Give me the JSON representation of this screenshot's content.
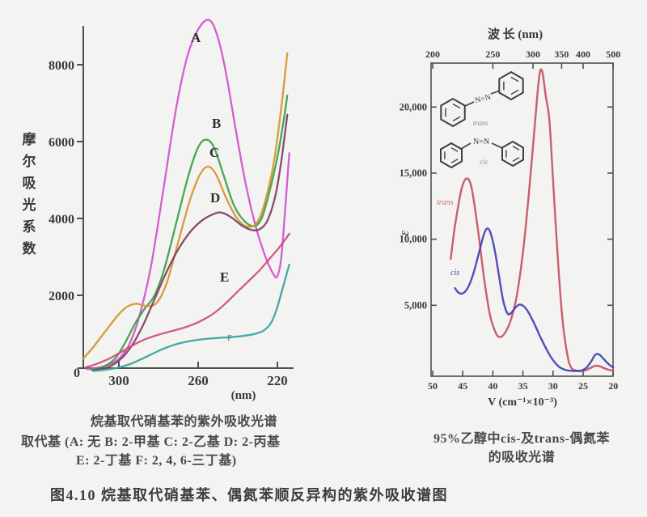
{
  "figure": {
    "number_caption": "图4.10  烷基取代硝基苯、偶氮苯顺反异构的紫外吸收谱图",
    "left_caption_line1": "烷基取代硝基苯的紫外吸收光谱",
    "left_caption_line2": "取代基 (A: 无  B: 2-甲基  C: 2-乙基  D: 2-丙基",
    "left_caption_line3": "E: 2-丁基  F: 2, 4, 6-三丁基)",
    "right_caption_line1": "95%乙醇中cis-及trans-偶氮苯",
    "right_caption_line2": "的吸收光谱"
  },
  "chart_data": [
    {
      "type": "line",
      "title": "烷基取代硝基苯的紫外吸收光谱",
      "xlabel": "(nm)",
      "ylabel": "摩尔吸光系数",
      "x_axis": {
        "unit": "nm",
        "ticks": [
          300,
          260,
          220
        ],
        "range": [
          318,
          214
        ],
        "reversed": true
      },
      "y_axis": {
        "ticks": [
          0,
          2000,
          4000,
          6000,
          8000
        ],
        "range": [
          0,
          9200
        ],
        "zero_label": "0"
      },
      "grid": false,
      "series": [
        {
          "name": "A",
          "substituent": "无",
          "color": "#d44fd0",
          "points": [
            [
              316,
              80
            ],
            [
              310,
              120
            ],
            [
              305,
              200
            ],
            [
              300,
              350
            ],
            [
              295,
              700
            ],
            [
              290,
              1400
            ],
            [
              284,
              2700
            ],
            [
              278,
              4600
            ],
            [
              271,
              6900
            ],
            [
              265,
              8300
            ],
            [
              259,
              9000
            ],
            [
              254,
              9150
            ],
            [
              250,
              8700
            ],
            [
              246,
              7800
            ],
            [
              241,
              6300
            ],
            [
              236,
              4900
            ],
            [
              231,
              3800
            ],
            [
              226,
              3000
            ],
            [
              222,
              2550
            ],
            [
              220,
              2500
            ],
            [
              218,
              3000
            ],
            [
              216,
              4300
            ],
            [
              214,
              5700
            ]
          ]
        },
        {
          "name": "B",
          "substituent": "2-甲基",
          "color": "#3aa044",
          "points": [
            [
              314,
              60
            ],
            [
              308,
              140
            ],
            [
              302,
              350
            ],
            [
              297,
              750
            ],
            [
              292,
              1250
            ],
            [
              287,
              1650
            ],
            [
              282,
              2000
            ],
            [
              277,
              2700
            ],
            [
              271,
              3900
            ],
            [
              265,
              5100
            ],
            [
              260,
              5850
            ],
            [
              256,
              6050
            ],
            [
              252,
              5850
            ],
            [
              247,
              5100
            ],
            [
              242,
              4350
            ],
            [
              237,
              3950
            ],
            [
              232,
              3800
            ],
            [
              228,
              4000
            ],
            [
              224,
              4700
            ],
            [
              220,
              5600
            ],
            [
              217,
              6500
            ],
            [
              215,
              7200
            ]
          ]
        },
        {
          "name": "C",
          "substituent": "2-乙基",
          "color": "#d8932f",
          "points": [
            [
              318,
              350
            ],
            [
              313,
              650
            ],
            [
              307,
              1050
            ],
            [
              301,
              1450
            ],
            [
              296,
              1700
            ],
            [
              291,
              1780
            ],
            [
              286,
              1720
            ],
            [
              281,
              1800
            ],
            [
              276,
              2300
            ],
            [
              270,
              3400
            ],
            [
              264,
              4500
            ],
            [
              259,
              5150
            ],
            [
              255,
              5350
            ],
            [
              251,
              5150
            ],
            [
              246,
              4550
            ],
            [
              241,
              4050
            ],
            [
              236,
              3800
            ],
            [
              231,
              3850
            ],
            [
              227,
              4300
            ],
            [
              222,
              5400
            ],
            [
              218,
              6900
            ],
            [
              215,
              8300
            ]
          ]
        },
        {
          "name": "D",
          "substituent": "2-丙基",
          "color": "#7d3f63",
          "points": [
            [
              313,
              50
            ],
            [
              306,
              120
            ],
            [
              300,
              300
            ],
            [
              294,
              650
            ],
            [
              288,
              1200
            ],
            [
              282,
              1900
            ],
            [
              276,
              2600
            ],
            [
              270,
              3200
            ],
            [
              264,
              3650
            ],
            [
              258,
              3950
            ],
            [
              252,
              4120
            ],
            [
              248,
              4150
            ],
            [
              243,
              4020
            ],
            [
              238,
              3820
            ],
            [
              233,
              3700
            ],
            [
              229,
              3720
            ],
            [
              225,
              3950
            ],
            [
              221,
              4600
            ],
            [
              218,
              5500
            ],
            [
              215,
              6700
            ]
          ]
        },
        {
          "name": "E",
          "substituent": "2-丁基",
          "color": "#cf4d7a",
          "points": [
            [
              317,
              120
            ],
            [
              311,
              220
            ],
            [
              305,
              350
            ],
            [
              299,
              520
            ],
            [
              293,
              700
            ],
            [
              287,
              850
            ],
            [
              281,
              960
            ],
            [
              274,
              1060
            ],
            [
              267,
              1160
            ],
            [
              260,
              1300
            ],
            [
              253,
              1500
            ],
            [
              247,
              1750
            ],
            [
              241,
              2050
            ],
            [
              235,
              2350
            ],
            [
              229,
              2650
            ],
            [
              224,
              2950
            ],
            [
              219,
              3250
            ],
            [
              214,
              3600
            ]
          ]
        },
        {
          "name": "F",
          "substituent": "2, 4, 6-三丁基",
          "color": "#35a39d",
          "points": [
            [
              313,
              30
            ],
            [
              307,
              60
            ],
            [
              301,
              110
            ],
            [
              295,
              200
            ],
            [
              289,
              330
            ],
            [
              283,
              480
            ],
            [
              277,
              620
            ],
            [
              271,
              730
            ],
            [
              264,
              810
            ],
            [
              257,
              860
            ],
            [
              250,
              890
            ],
            [
              244,
              910
            ],
            [
              238,
              940
            ],
            [
              232,
              990
            ],
            [
              227,
              1080
            ],
            [
              223,
              1300
            ],
            [
              220,
              1700
            ],
            [
              217,
              2250
            ],
            [
              214,
              2800
            ]
          ]
        }
      ],
      "annotations": [
        {
          "text": "A",
          "x": 236,
          "y": 52,
          "size": 17,
          "color": "#2d2d2d",
          "bold": true
        },
        {
          "text": "B",
          "x": 262,
          "y": 158,
          "size": 17,
          "color": "#2d2d2d",
          "bold": true
        },
        {
          "text": "C",
          "x": 259,
          "y": 194,
          "size": 17,
          "color": "#2d2d2d",
          "bold": true
        },
        {
          "text": "D",
          "x": 260,
          "y": 250,
          "size": 17,
          "color": "#2d2d2d",
          "bold": true
        },
        {
          "text": "E",
          "x": 272,
          "y": 348,
          "size": 17,
          "color": "#2d2d2d",
          "bold": true
        },
        {
          "text": "F",
          "x": 281,
          "y": 421,
          "size": 11,
          "color": "#4a7d7d",
          "bold": false
        }
      ]
    },
    {
      "type": "line",
      "title": "95%乙醇中cis-及trans-偶氮苯的吸收光谱",
      "xlabel_bottom": "V (cm⁻¹×10⁻³)",
      "xlabel_top": "波 长 (nm)",
      "ylabel": "ε",
      "x_axis_bottom": {
        "unit": "cm⁻¹×10⁻³",
        "ticks": [
          50,
          45,
          40,
          35,
          30,
          25,
          20
        ],
        "range": [
          50,
          20
        ]
      },
      "x_axis_top": {
        "unit": "nm",
        "ticks": [
          200,
          250,
          300,
          350,
          400,
          500
        ]
      },
      "y_axis": {
        "ticks": [
          5000,
          10000,
          15000,
          20000
        ],
        "tick_labels": [
          "5,000",
          "10,000",
          "15,000",
          "20,000"
        ],
        "range": [
          0,
          23500
        ]
      },
      "grid": false,
      "series": [
        {
          "name": "trans",
          "color": "#c75163",
          "points": [
            [
              47.0,
              8500
            ],
            [
              46.3,
              11000
            ],
            [
              45.2,
              13800
            ],
            [
              44.3,
              14600
            ],
            [
              43.5,
              13800
            ],
            [
              42.5,
              10800
            ],
            [
              41.5,
              7200
            ],
            [
              40.5,
              4300
            ],
            [
              39.5,
              2900
            ],
            [
              38.8,
              2600
            ],
            [
              38.0,
              2900
            ],
            [
              37.0,
              3900
            ],
            [
              36.0,
              5800
            ],
            [
              35.0,
              9000
            ],
            [
              34.0,
              13500
            ],
            [
              33.0,
              18800
            ],
            [
              32.3,
              22300
            ],
            [
              31.8,
              22700
            ],
            [
              31.2,
              20800
            ],
            [
              30.6,
              19000
            ],
            [
              30.0,
              14500
            ],
            [
              29.2,
              8500
            ],
            [
              28.4,
              3800
            ],
            [
              27.6,
              1200
            ],
            [
              27.0,
              300
            ],
            [
              26.2,
              60
            ],
            [
              25.4,
              30
            ],
            [
              24.6,
              80
            ],
            [
              23.8,
              250
            ],
            [
              23.0,
              420
            ],
            [
              22.2,
              380
            ],
            [
              21.4,
              220
            ],
            [
              20.5,
              90
            ],
            [
              20.0,
              60
            ]
          ]
        },
        {
          "name": "cis",
          "color": "#4340b5",
          "points": [
            [
              46.3,
              6300
            ],
            [
              45.7,
              5950
            ],
            [
              45.0,
              5900
            ],
            [
              44.2,
              6300
            ],
            [
              43.3,
              7300
            ],
            [
              42.4,
              8800
            ],
            [
              41.6,
              10200
            ],
            [
              41.0,
              10800
            ],
            [
              40.4,
              10500
            ],
            [
              39.7,
              9200
            ],
            [
              39.0,
              7300
            ],
            [
              38.3,
              5400
            ],
            [
              37.6,
              4400
            ],
            [
              37.0,
              4400
            ],
            [
              36.3,
              4800
            ],
            [
              35.6,
              5050
            ],
            [
              34.8,
              4900
            ],
            [
              34.0,
              4400
            ],
            [
              33.0,
              3500
            ],
            [
              32.0,
              2500
            ],
            [
              31.0,
              1600
            ],
            [
              30.0,
              850
            ],
            [
              29.0,
              350
            ],
            [
              28.0,
              120
            ],
            [
              27.0,
              40
            ],
            [
              26.0,
              30
            ],
            [
              25.2,
              80
            ],
            [
              24.4,
              300
            ],
            [
              23.6,
              800
            ],
            [
              23.0,
              1250
            ],
            [
              22.4,
              1300
            ],
            [
              21.8,
              1050
            ],
            [
              21.0,
              650
            ],
            [
              20.3,
              380
            ],
            [
              20.0,
              320
            ]
          ]
        }
      ],
      "annotations": [
        {
          "text": "trans",
          "x": 540,
          "y": 253,
          "size": 10,
          "color": "#d06878",
          "italic": true
        },
        {
          "text": "cis",
          "x": 557,
          "y": 340,
          "size": 10,
          "color": "#4340b5",
          "italic": true
        }
      ],
      "structures": [
        {
          "label": "trans",
          "bond_text": "N=N"
        },
        {
          "label": "cis",
          "bond_text": "N=N"
        }
      ]
    }
  ]
}
